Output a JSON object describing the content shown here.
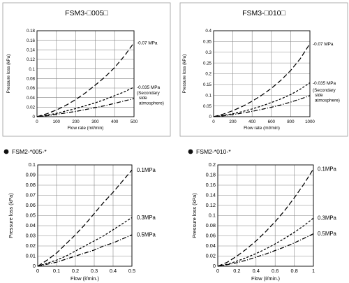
{
  "chart_data": [
    {
      "type": "line",
      "title": "FSM3-□005□",
      "xlabel": "Flow rate (mℓ/min)",
      "ylabel": "Pressure loss (kPa)",
      "xlim": [
        0,
        500
      ],
      "ylim": [
        0,
        0.18
      ],
      "xticks": [
        "0",
        "100",
        "200",
        "300",
        "400",
        "500"
      ],
      "yticks": [
        "0",
        "0.02",
        "0.04",
        "0.06",
        "0.08",
        "0.1",
        "0.12",
        "0.14",
        "0.16",
        "0.18"
      ],
      "grid": true,
      "series": [
        {
          "name": "-0.07 MPa",
          "dash": "long",
          "x": [
            0,
            50,
            100,
            150,
            200,
            250,
            300,
            350,
            400,
            450,
            500
          ],
          "y": [
            0,
            0.006,
            0.014,
            0.024,
            0.036,
            0.05,
            0.066,
            0.083,
            0.103,
            0.127,
            0.155
          ]
        },
        {
          "name": "-0.035 MPa",
          "dash": "short",
          "x": [
            0,
            50,
            100,
            150,
            200,
            250,
            300,
            350,
            400,
            450,
            500
          ],
          "y": [
            0,
            0.003,
            0.007,
            0.012,
            0.017,
            0.023,
            0.029,
            0.036,
            0.044,
            0.052,
            0.062
          ]
        },
        {
          "name": "(Secondary side atmosphere)",
          "dash": "dashdot",
          "x": [
            0,
            50,
            100,
            150,
            200,
            250,
            300,
            350,
            400,
            450,
            500
          ],
          "y": [
            0,
            0.002,
            0.005,
            0.008,
            0.011,
            0.015,
            0.019,
            0.023,
            0.028,
            0.033,
            0.038
          ]
        }
      ]
    },
    {
      "type": "line",
      "title": "FSM3-□010□",
      "xlabel": "Flow rate (mℓ/min)",
      "ylabel": "Pressure loss (kPa)",
      "xlim": [
        0,
        1000
      ],
      "ylim": [
        0,
        0.4
      ],
      "xticks": [
        "0",
        "200",
        "400",
        "600",
        "800",
        "1000"
      ],
      "yticks": [
        "0",
        "0.05",
        "0.1",
        "0.15",
        "0.2",
        "0.25",
        "0.3",
        "0.35",
        "0.4"
      ],
      "grid": true,
      "series": [
        {
          "name": "-0.07 MPa",
          "dash": "long",
          "x": [
            0,
            100,
            200,
            300,
            400,
            500,
            600,
            700,
            800,
            900,
            1000
          ],
          "y": [
            0,
            0.012,
            0.028,
            0.048,
            0.072,
            0.1,
            0.132,
            0.17,
            0.215,
            0.27,
            0.34
          ]
        },
        {
          "name": "-0.035 MPa",
          "dash": "short",
          "x": [
            0,
            100,
            200,
            300,
            400,
            500,
            600,
            700,
            800,
            900,
            1000
          ],
          "y": [
            0,
            0.006,
            0.014,
            0.024,
            0.036,
            0.05,
            0.066,
            0.083,
            0.103,
            0.128,
            0.158
          ]
        },
        {
          "name": "(Secondary side atmosphere)",
          "dash": "dashdot",
          "x": [
            0,
            100,
            200,
            300,
            400,
            500,
            600,
            700,
            800,
            900,
            1000
          ],
          "y": [
            0,
            0.004,
            0.01,
            0.017,
            0.025,
            0.034,
            0.044,
            0.055,
            0.068,
            0.082,
            0.098
          ]
        }
      ]
    },
    {
      "type": "line",
      "title": "FSM2-*005-*",
      "xlabel": "Flow (ℓ/min.)",
      "ylabel": "Pressure loss (kPa)",
      "xlim": [
        0,
        0.5
      ],
      "ylim": [
        0,
        0.1
      ],
      "xticks": [
        "0",
        "0.1",
        "0.2",
        "0.3",
        "0.4",
        "0.5"
      ],
      "yticks": [
        "0",
        "0.01",
        "0.02",
        "0.03",
        "0.04",
        "0.05",
        "0.06",
        "0.07",
        "0.08",
        "0.09",
        "0.1"
      ],
      "grid": true,
      "series": [
        {
          "name": "0.1MPa",
          "dash": "long",
          "x": [
            0,
            0.05,
            0.1,
            0.15,
            0.2,
            0.25,
            0.3,
            0.35,
            0.4,
            0.45,
            0.5
          ],
          "y": [
            0,
            0.006,
            0.013,
            0.022,
            0.031,
            0.041,
            0.052,
            0.063,
            0.073,
            0.084,
            0.095
          ]
        },
        {
          "name": "0.3MPa",
          "dash": "short",
          "x": [
            0,
            0.05,
            0.1,
            0.15,
            0.2,
            0.25,
            0.3,
            0.35,
            0.4,
            0.45,
            0.5
          ],
          "y": [
            0,
            0.003,
            0.006,
            0.01,
            0.015,
            0.02,
            0.025,
            0.03,
            0.036,
            0.042,
            0.048
          ]
        },
        {
          "name": "0.5MPa",
          "dash": "dashdot",
          "x": [
            0,
            0.05,
            0.1,
            0.15,
            0.2,
            0.25,
            0.3,
            0.35,
            0.4,
            0.45,
            0.5
          ],
          "y": [
            0,
            0.002,
            0.004,
            0.007,
            0.01,
            0.013,
            0.016,
            0.02,
            0.023,
            0.027,
            0.031
          ]
        }
      ]
    },
    {
      "type": "line",
      "title": "FSM2-*010-*",
      "xlabel": "Flow (ℓ/min.)",
      "ylabel": "Pressure loss (kPa)",
      "xlim": [
        0,
        1
      ],
      "ylim": [
        0,
        0.2
      ],
      "xticks": [
        "0",
        "0.2",
        "0.4",
        "0.6",
        "0.8",
        "1"
      ],
      "yticks": [
        "0",
        "0.02",
        "0.04",
        "0.06",
        "0.08",
        "0.1",
        "0.12",
        "0.14",
        "0.16",
        "0.18",
        "0.2"
      ],
      "grid": true,
      "series": [
        {
          "name": "0.1MPa",
          "dash": "long",
          "x": [
            0,
            0.1,
            0.2,
            0.3,
            0.4,
            0.5,
            0.6,
            0.7,
            0.8,
            0.9,
            1.0
          ],
          "y": [
            0,
            0.008,
            0.02,
            0.034,
            0.05,
            0.068,
            0.088,
            0.11,
            0.135,
            0.162,
            0.192
          ]
        },
        {
          "name": "0.3MPa",
          "dash": "short",
          "x": [
            0,
            0.1,
            0.2,
            0.3,
            0.4,
            0.5,
            0.6,
            0.7,
            0.8,
            0.9,
            1.0
          ],
          "y": [
            0,
            0.004,
            0.01,
            0.017,
            0.025,
            0.034,
            0.044,
            0.055,
            0.067,
            0.08,
            0.095
          ]
        },
        {
          "name": "0.5MPa",
          "dash": "dashdot",
          "x": [
            0,
            0.1,
            0.2,
            0.3,
            0.4,
            0.5,
            0.6,
            0.7,
            0.8,
            0.9,
            1.0
          ],
          "y": [
            0,
            0.003,
            0.007,
            0.012,
            0.018,
            0.024,
            0.031,
            0.038,
            0.046,
            0.055,
            0.064
          ]
        }
      ]
    }
  ]
}
